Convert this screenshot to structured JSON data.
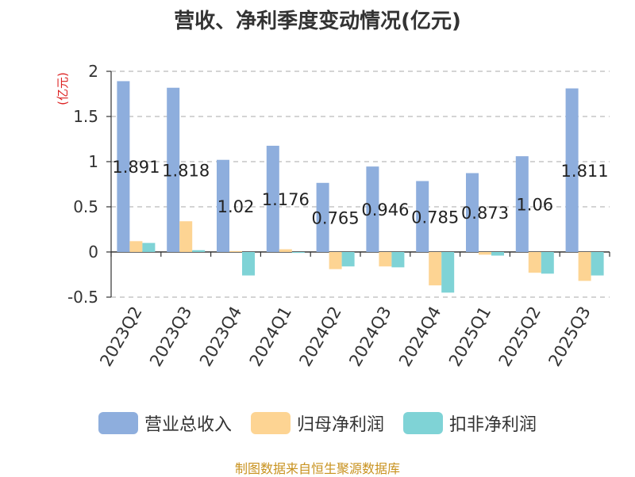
{
  "chart_data": {
    "type": "bar",
    "title": "营收、净利季度变动情况(亿元)",
    "ylabel": "(亿元)",
    "xlabel": "",
    "ylim": [
      -0.5,
      2
    ],
    "yticks": [
      2,
      1.5,
      1,
      0.5,
      0,
      -0.5
    ],
    "ytick_labels": [
      "2",
      "1.5",
      "1",
      "0.5",
      "0",
      "-0.5"
    ],
    "categories": [
      "2023Q2",
      "2023Q3",
      "2023Q4",
      "2024Q1",
      "2024Q2",
      "2024Q3",
      "2024Q4",
      "2025Q1",
      "2025Q2",
      "2025Q3"
    ],
    "series": [
      {
        "name": "营业总收入",
        "color": "#8eaedd",
        "values": [
          1.891,
          1.818,
          1.02,
          1.176,
          0.765,
          0.946,
          0.785,
          0.873,
          1.06,
          1.811
        ]
      },
      {
        "name": "归母净利润",
        "color": "#fdd493",
        "values": [
          0.12,
          0.34,
          0.01,
          0.03,
          -0.19,
          -0.16,
          -0.37,
          -0.03,
          -0.23,
          -0.32
        ]
      },
      {
        "name": "扣非净利润",
        "color": "#7fd3d6",
        "values": [
          0.1,
          0.02,
          -0.26,
          -0.01,
          -0.16,
          -0.17,
          -0.45,
          -0.04,
          -0.24,
          -0.26
        ]
      }
    ],
    "data_labels": [
      "1.891",
      "1.818",
      "1.02",
      "1.176",
      "0.765",
      "0.946",
      "0.785",
      "0.873",
      "1.06",
      "1.811"
    ],
    "grid": true,
    "legend_position": "bottom"
  },
  "source_note": "制图数据来自恒生聚源数据库"
}
